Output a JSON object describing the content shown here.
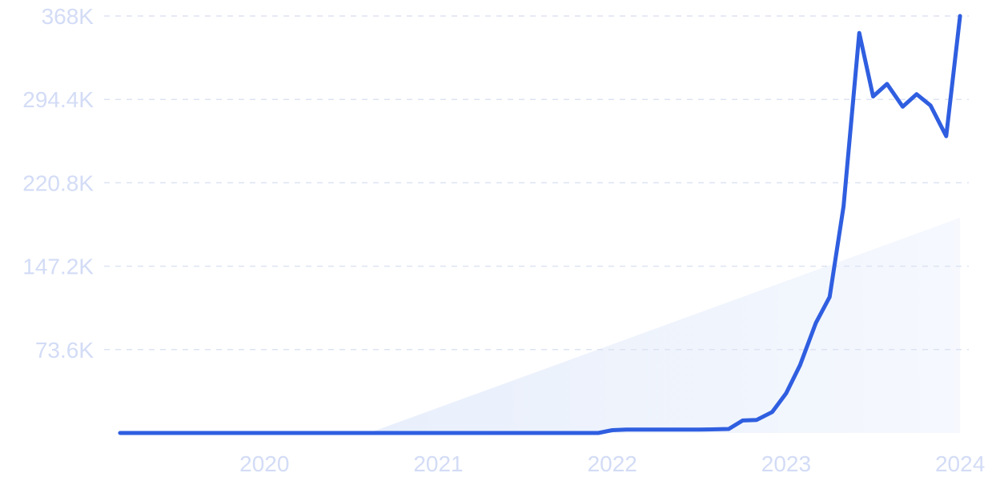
{
  "chart_data": {
    "type": "line",
    "title": "",
    "xlabel": "",
    "ylabel": "",
    "y_ticks": [
      {
        "value": 73600,
        "label": "73.6K"
      },
      {
        "value": 147200,
        "label": "147.2K"
      },
      {
        "value": 220800,
        "label": "220.8K"
      },
      {
        "value": 294400,
        "label": "294.4K"
      },
      {
        "value": 368000,
        "label": "368K"
      }
    ],
    "x_ticks": [
      {
        "value": 2020.0,
        "label": "2020"
      },
      {
        "value": 2021.0,
        "label": "2021"
      },
      {
        "value": 2022.0,
        "label": "2022"
      },
      {
        "value": 2023.0,
        "label": "2023"
      },
      {
        "value": 2024.0,
        "label": "2024"
      }
    ],
    "xlim": [
      2019.17,
      2024.05
    ],
    "ylim": [
      0,
      368000
    ],
    "grid": true,
    "line_color": "#2f5ee0",
    "trend_fill_color": "#e4ecfb",
    "trend": {
      "x": [
        2020.6,
        2024.0
      ],
      "y": [
        0,
        190000
      ]
    },
    "series": [
      {
        "x": [
          2019.17,
          2019.5,
          2020.0,
          2020.5,
          2021.0,
          2021.5,
          2021.92,
          2022.0,
          2022.08,
          2022.5,
          2022.67,
          2022.75,
          2022.83,
          2022.92,
          2023.0,
          2023.08,
          2023.17,
          2023.25,
          2023.33,
          2023.42,
          2023.5,
          2023.58,
          2023.67,
          2023.75,
          2023.83,
          2023.92,
          2024.0
        ],
        "y": [
          0,
          0,
          0,
          0,
          0,
          0,
          0,
          2500,
          3000,
          3000,
          3500,
          11000,
          11500,
          18500,
          35000,
          60000,
          97000,
          120000,
          200000,
          353000,
          297000,
          308000,
          288000,
          299000,
          289000,
          262000,
          368000
        ]
      }
    ]
  }
}
